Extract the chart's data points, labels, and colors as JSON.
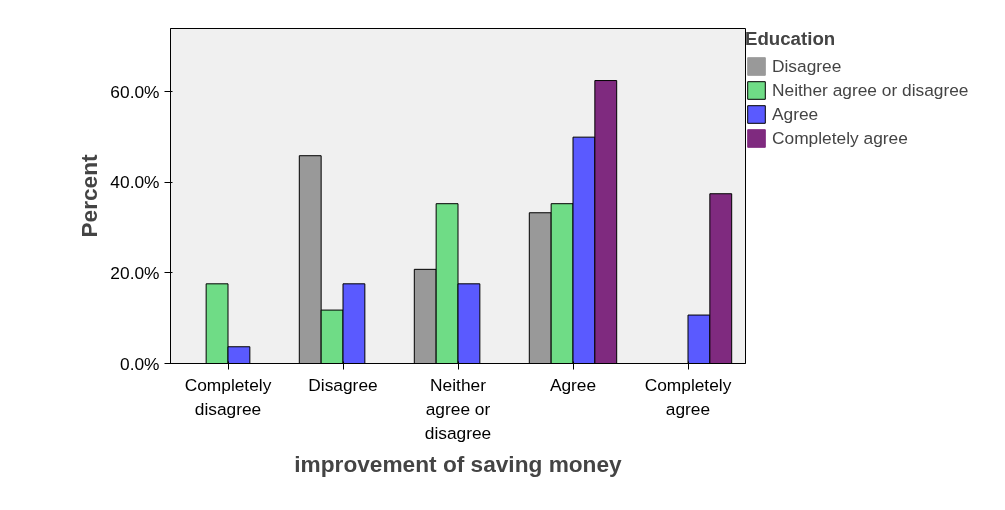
{
  "chart_data": {
    "type": "bar",
    "xlabel": "improvement of saving money",
    "ylabel": "Percent",
    "legend_title": "Education",
    "legend": "right",
    "categories": [
      "Completely disagree",
      "Disagree",
      "Neither agree or disagree",
      "Agree",
      "Completely agree"
    ],
    "series": [
      {
        "name": "Disagree",
        "color": "#999999",
        "values": [
          0,
          45.9,
          20.8,
          33.3,
          0
        ]
      },
      {
        "name": "Neither agree or disagree",
        "color": "#6fdc86",
        "values": [
          17.6,
          11.8,
          35.3,
          35.3,
          0
        ]
      },
      {
        "name": "Agree",
        "color": "#5a5aff",
        "values": [
          3.7,
          17.6,
          17.6,
          50.0,
          10.7
        ]
      },
      {
        "name": "Completely agree",
        "color": "#7f2a7f",
        "values": [
          0,
          0,
          0,
          62.5,
          37.5
        ]
      }
    ],
    "ylim": [
      0,
      74
    ],
    "yticks": [
      {
        "value": 0,
        "label": "0.0%"
      },
      {
        "value": 20,
        "label": "20.0%"
      },
      {
        "value": 40,
        "label": "40.0%"
      },
      {
        "value": 60,
        "label": "60.0%"
      }
    ],
    "grid": false
  }
}
